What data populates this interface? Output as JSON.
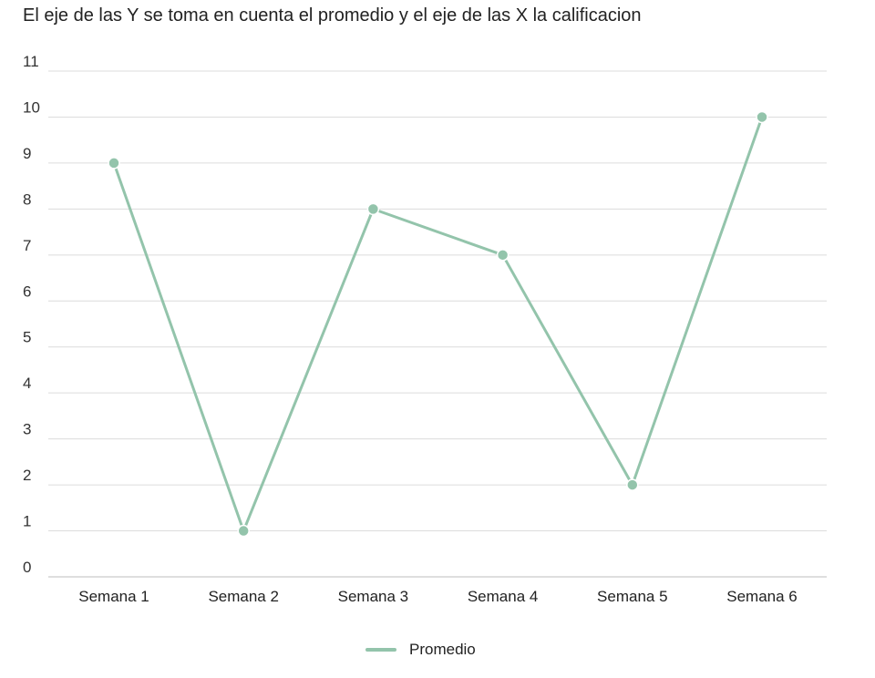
{
  "chart_data": {
    "type": "line",
    "title": "El eje de las Y se toma en cuenta el promedio y el eje de las X la calificacion",
    "categories": [
      "Semana 1",
      "Semana 2",
      "Semana 3",
      "Semana 4",
      "Semana 5",
      "Semana 6"
    ],
    "series": [
      {
        "name": "Promedio",
        "values": [
          9,
          1,
          8,
          7,
          2,
          10
        ],
        "color": "#93c4ab"
      }
    ],
    "ylim": [
      0,
      11
    ],
    "yticks": [
      "0",
      "1",
      "2",
      "3",
      "4",
      "5",
      "6",
      "7",
      "8",
      "9",
      "10",
      "11"
    ],
    "grid": true,
    "legend": "bottom"
  }
}
